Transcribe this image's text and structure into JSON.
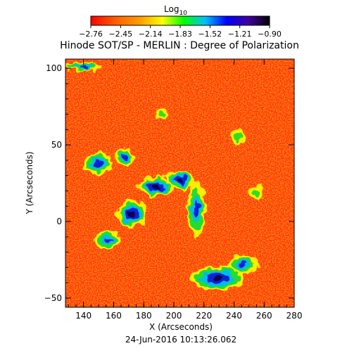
{
  "chart_data": {
    "type": "heatmap",
    "title": "Hinode SOT/SP - MERLIN : Degree of Polarization",
    "xlabel": "X (Arcseconds)",
    "ylabel": "Y (Arcseconds)",
    "xlim": [
      128,
      280
    ],
    "ylim": [
      -56,
      106
    ],
    "xticks": [
      "140",
      "160",
      "180",
      "200",
      "220",
      "240",
      "260",
      "280"
    ],
    "xtick_values": [
      140,
      160,
      180,
      200,
      220,
      240,
      260,
      280
    ],
    "yticks": [
      "-50",
      "0",
      "50",
      "100"
    ],
    "ytick_values": [
      -50,
      0,
      50,
      100
    ],
    "colorbar": {
      "label_main": "Log",
      "label_sub": "10",
      "range": [
        -2.76,
        -0.9
      ],
      "ticks": [
        "-2.76",
        "-2.45",
        "-2.14",
        "-1.83",
        "-1.52",
        "-1.21",
        "-0.90"
      ],
      "colormap": [
        "#ff0000",
        "#ff6000",
        "#ffa000",
        "#ffff00",
        "#00ff00",
        "#00c0ff",
        "#0000ff",
        "#4000a0",
        "#000000"
      ]
    },
    "background_color": "#ff3a10",
    "regions": [
      {
        "x": 150,
        "y": 38,
        "rx": 10,
        "ry": 7,
        "level": "mid"
      },
      {
        "x": 167,
        "y": 42,
        "rx": 6,
        "ry": 6,
        "level": "mid"
      },
      {
        "x": 188,
        "y": 23,
        "rx": 12,
        "ry": 6,
        "level": "high"
      },
      {
        "x": 204,
        "y": 27,
        "rx": 10,
        "ry": 6,
        "level": "high"
      },
      {
        "x": 172,
        "y": 5,
        "rx": 10,
        "ry": 9,
        "level": "high"
      },
      {
        "x": 156,
        "y": -12,
        "rx": 9,
        "ry": 6,
        "level": "mid"
      },
      {
        "x": 215,
        "y": 8,
        "rx": 6,
        "ry": 18,
        "level": "mid"
      },
      {
        "x": 229,
        "y": -37,
        "rx": 18,
        "ry": 8,
        "level": "high"
      },
      {
        "x": 246,
        "y": -28,
        "rx": 10,
        "ry": 6,
        "level": "mid"
      },
      {
        "x": 140,
        "y": 101,
        "rx": 12,
        "ry": 3,
        "level": "mid"
      },
      {
        "x": 192,
        "y": 70,
        "rx": 5,
        "ry": 4,
        "level": "low"
      },
      {
        "x": 243,
        "y": 55,
        "rx": 5,
        "ry": 5,
        "level": "low"
      },
      {
        "x": 255,
        "y": 18,
        "rx": 5,
        "ry": 5,
        "level": "low"
      }
    ],
    "timestamp": "24-Jun-2016 10:13:26.062"
  }
}
